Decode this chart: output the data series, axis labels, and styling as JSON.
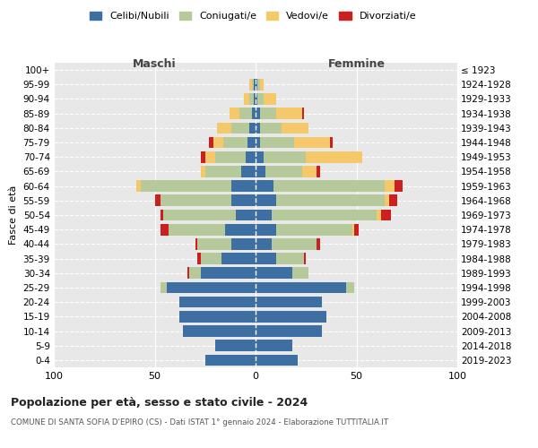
{
  "age_groups": [
    "0-4",
    "5-9",
    "10-14",
    "15-19",
    "20-24",
    "25-29",
    "30-34",
    "35-39",
    "40-44",
    "45-49",
    "50-54",
    "55-59",
    "60-64",
    "65-69",
    "70-74",
    "75-79",
    "80-84",
    "85-89",
    "90-94",
    "95-99",
    "100+"
  ],
  "birth_years": [
    "2019-2023",
    "2014-2018",
    "2009-2013",
    "2004-2008",
    "1999-2003",
    "1994-1998",
    "1989-1993",
    "1984-1988",
    "1979-1983",
    "1974-1978",
    "1969-1973",
    "1964-1968",
    "1959-1963",
    "1954-1958",
    "1949-1953",
    "1944-1948",
    "1939-1943",
    "1934-1938",
    "1929-1933",
    "1924-1928",
    "≤ 1923"
  ],
  "colors": {
    "celibi": "#3d6fa3",
    "coniugati": "#b5c99a",
    "vedovi": "#f5c96a",
    "divorziati": "#cc2020"
  },
  "maschi": {
    "celibi": [
      25,
      20,
      36,
      38,
      38,
      44,
      27,
      17,
      12,
      15,
      10,
      12,
      12,
      7,
      5,
      4,
      3,
      2,
      1,
      1,
      0
    ],
    "coniugati": [
      0,
      0,
      0,
      0,
      0,
      3,
      6,
      10,
      17,
      28,
      36,
      35,
      45,
      18,
      15,
      12,
      9,
      6,
      2,
      1,
      0
    ],
    "vedovi": [
      0,
      0,
      0,
      0,
      0,
      0,
      0,
      0,
      0,
      0,
      0,
      0,
      2,
      2,
      5,
      5,
      7,
      5,
      3,
      1,
      0
    ],
    "divorziati": [
      0,
      0,
      0,
      0,
      0,
      0,
      1,
      2,
      1,
      4,
      1,
      3,
      0,
      0,
      2,
      2,
      0,
      0,
      0,
      0,
      0
    ]
  },
  "femmine": {
    "celibi": [
      21,
      18,
      33,
      35,
      33,
      45,
      18,
      10,
      8,
      10,
      8,
      10,
      9,
      5,
      4,
      2,
      2,
      2,
      1,
      1,
      0
    ],
    "coniugati": [
      0,
      0,
      0,
      0,
      0,
      4,
      8,
      14,
      22,
      38,
      52,
      54,
      55,
      18,
      21,
      17,
      11,
      8,
      3,
      1,
      0
    ],
    "vedovi": [
      0,
      0,
      0,
      0,
      0,
      0,
      0,
      0,
      0,
      1,
      2,
      2,
      5,
      7,
      28,
      18,
      13,
      13,
      6,
      2,
      0
    ],
    "divorziati": [
      0,
      0,
      0,
      0,
      0,
      0,
      0,
      1,
      2,
      2,
      5,
      4,
      4,
      2,
      0,
      1,
      0,
      1,
      0,
      0,
      0
    ]
  },
  "xlim": 100,
  "title_main": "Popolazione per età, sesso e stato civile - 2024",
  "title_sub": "COMUNE DI SANTA SOFIA D'EPIRO (CS) - Dati ISTAT 1° gennaio 2024 - Elaborazione TUTTITALIA.IT",
  "ylabel_left": "Fasce di età",
  "maschi_label": "Maschi",
  "femmine_label": "Femmine",
  "legend_labels": [
    "Celibi/Nubili",
    "Coniugati/e",
    "Vedovi/e",
    "Divorziati/e"
  ]
}
